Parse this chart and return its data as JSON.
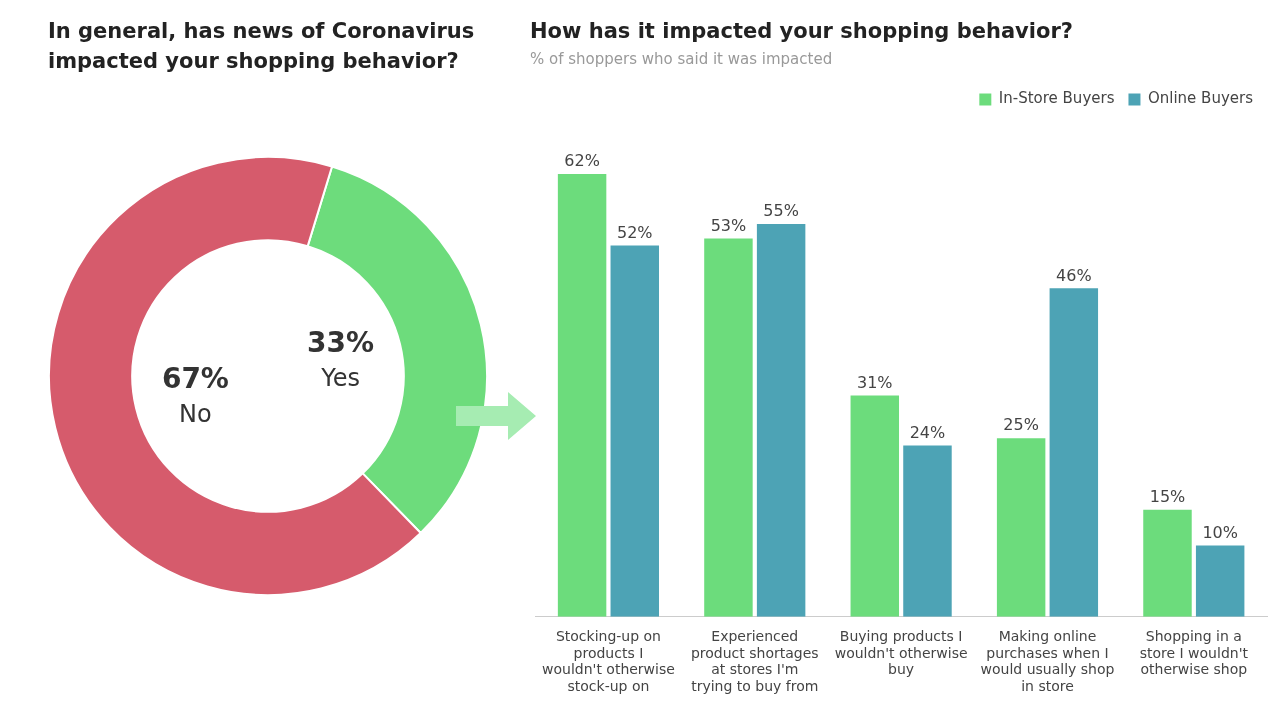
{
  "chart_data": [
    {
      "type": "donut",
      "title": "In general, has news of Coronavirus impacted your shopping behavior?",
      "categories": [
        "Yes",
        "No"
      ],
      "values": [
        33,
        67
      ],
      "colors": [
        "#6ddc7c",
        "#d65b6c"
      ],
      "value_labels": [
        "33%",
        "67%"
      ]
    },
    {
      "type": "bar",
      "title": "How has it impacted your shopping behavior?",
      "subtitle": "% of shoppers who said it was impacted",
      "categories": [
        "Stocking-up on products I wouldn't otherwise stock-up on",
        "Experienced product shortages at stores I'm trying to buy from",
        "Buying products I wouldn't otherwise buy",
        "Making online purchases when I would usually shop in store",
        "Shopping in a store I wouldn't otherwise shop"
      ],
      "series": [
        {
          "name": "In-Store Buyers",
          "color": "#6cdc7c",
          "values": [
            62,
            53,
            31,
            25,
            15
          ],
          "value_labels": [
            "62%",
            "53%",
            "31%",
            "25%",
            "15%"
          ]
        },
        {
          "name": "Online Buyers",
          "color": "#4da3b5",
          "values": [
            52,
            55,
            24,
            46,
            10
          ],
          "value_labels": [
            "52%",
            "55%",
            "24%",
            "46%",
            "10%"
          ]
        }
      ],
      "legend": "top right"
    }
  ]
}
